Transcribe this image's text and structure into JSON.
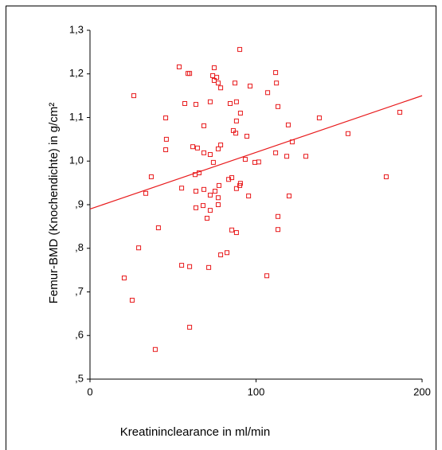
{
  "chart_data": {
    "type": "scatter",
    "x_label": "Kreatininclearance in ml/min",
    "y_label": "Femur-BMD (Knochendichte) in g/cm²",
    "xlim": [
      0,
      200
    ],
    "xticks": [
      0,
      100,
      200
    ],
    "ylim": [
      0.5,
      1.3
    ],
    "yticks": [
      {
        "value": 0.5,
        "label": ",5"
      },
      {
        "value": 0.6,
        "label": ",6"
      },
      {
        "value": 0.7,
        "label": ",7"
      },
      {
        "value": 0.8,
        "label": ",8"
      },
      {
        "value": 0.9,
        "label": ",9"
      },
      {
        "value": 1.0,
        "label": "1,0"
      },
      {
        "value": 1.1,
        "label": "1,1"
      },
      {
        "value": 1.2,
        "label": "1,2"
      },
      {
        "value": 1.3,
        "label": "1,3"
      }
    ],
    "color": "#e8191b",
    "x": [
      90.2,
      53.7,
      74.8,
      59,
      60,
      111.8,
      73.9,
      74.8,
      76.3,
      77.2,
      87.3,
      96.4,
      78.7,
      112.3,
      107,
      26.4,
      57.1,
      63.8,
      72.4,
      88.2,
      84.4,
      113.2,
      138.1,
      45.6,
      186.6,
      90.6,
      88.2,
      119.4,
      68.6,
      86.3,
      87.8,
      155.4,
      94.5,
      46,
      121.8,
      78.7,
      61.9,
      77.2,
      64.7,
      45.6,
      68.6,
      72.4,
      111.8,
      118.5,
      130,
      93.5,
      99.3,
      101.6,
      74.3,
      65.7,
      63.3,
      36.9,
      178.4,
      83.5,
      85.4,
      77.7,
      90.6,
      90.2,
      88.2,
      55.2,
      68.6,
      75.3,
      63.8,
      33.6,
      72.4,
      95.5,
      119.9,
      77.2,
      77.2,
      63.8,
      68.1,
      72.4,
      70.5,
      113.2,
      41.2,
      113.2,
      85.4,
      88.2,
      29.3,
      82.5,
      78.7,
      55.2,
      60,
      71.5,
      106.5,
      20.6,
      25.4,
      60,
      39.3
    ],
    "values": [
      1.256,
      1.216,
      1.214,
      1.201,
      1.201,
      1.203,
      1.196,
      1.185,
      1.192,
      1.179,
      1.179,
      1.172,
      1.168,
      1.179,
      1.157,
      1.15,
      1.132,
      1.13,
      1.136,
      1.136,
      1.132,
      1.125,
      1.099,
      1.099,
      1.112,
      1.11,
      1.092,
      1.083,
      1.081,
      1.07,
      1.064,
      1.063,
      1.057,
      1.05,
      1.044,
      1.037,
      1.033,
      1.028,
      1.03,
      1.026,
      1.019,
      1.015,
      1.019,
      1.011,
      1.011,
      1.004,
      0.997,
      0.998,
      0.997,
      0.973,
      0.969,
      0.964,
      0.964,
      0.958,
      0.962,
      0.944,
      0.949,
      0.944,
      0.937,
      0.938,
      0.935,
      0.931,
      0.931,
      0.926,
      0.922,
      0.92,
      0.92,
      0.916,
      0.9,
      0.893,
      0.898,
      0.887,
      0.869,
      0.873,
      0.847,
      0.843,
      0.842,
      0.836,
      0.801,
      0.79,
      0.785,
      0.761,
      0.758,
      0.756,
      0.737,
      0.732,
      0.681,
      0.619,
      0.568
    ],
    "fit": {
      "x": [
        0,
        200
      ],
      "values": [
        0.89,
        1.15
      ]
    }
  }
}
